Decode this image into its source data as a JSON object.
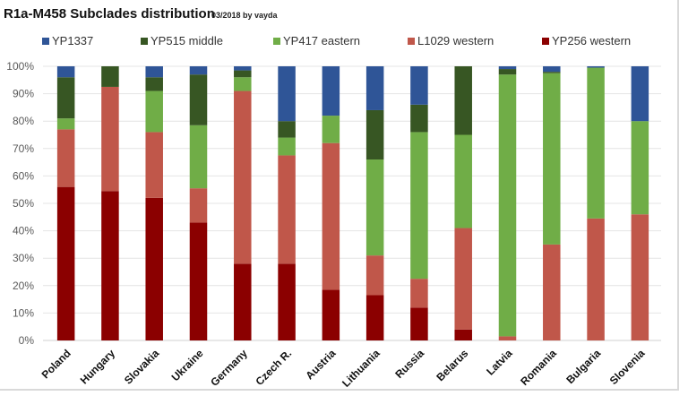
{
  "chart_data": {
    "type": "bar",
    "stacked": true,
    "percent_stacked": true,
    "title": "R1a-M458 Subclades distribution",
    "subtitle": "03/2018 by vayda",
    "xlabel": "",
    "ylabel": "",
    "ylim": [
      0,
      100
    ],
    "y_ticks": [
      "0%",
      "10%",
      "20%",
      "30%",
      "40%",
      "50%",
      "60%",
      "70%",
      "80%",
      "90%",
      "100%"
    ],
    "grid": true,
    "legend_position": "top",
    "categories": [
      "Poland",
      "Hungary",
      "Slovakia",
      "Ukraine",
      "Germany",
      "Czech R.",
      "Austria",
      "Lithuania",
      "Russia",
      "Belarus",
      "Latvia",
      "Romania",
      "Bulgaria",
      "Slovenia"
    ],
    "legend_order": [
      "YP1337",
      "YP515 middle",
      "YP417 eastern",
      "L1029 western",
      "YP256 western"
    ],
    "series": [
      {
        "name": "YP256 western",
        "color": "#8b0000",
        "values": [
          56,
          54.5,
          52,
          43,
          28,
          28,
          18.5,
          16.5,
          12,
          4,
          0,
          0,
          0,
          0
        ]
      },
      {
        "name": "L1029 western",
        "color": "#c0574a",
        "values": [
          21,
          38,
          24,
          12.5,
          63,
          39.5,
          53.5,
          14.5,
          10.5,
          37,
          1.5,
          35,
          44.5,
          46
        ]
      },
      {
        "name": "YP417 eastern",
        "color": "#70ad47",
        "values": [
          4,
          0,
          15,
          23,
          5,
          6.5,
          10,
          35,
          53.5,
          34,
          95.5,
          62.5,
          55,
          34
        ]
      },
      {
        "name": "YP515 middle",
        "color": "#375623",
        "values": [
          15,
          7.5,
          5,
          18.5,
          2.5,
          6,
          0,
          18,
          10,
          25,
          2,
          0.5,
          0,
          0
        ]
      },
      {
        "name": "YP1337",
        "color": "#2f5597",
        "values": [
          4,
          0,
          4,
          3,
          1.5,
          20,
          18,
          16,
          14,
          0,
          1,
          2,
          0.5,
          20
        ]
      }
    ]
  }
}
